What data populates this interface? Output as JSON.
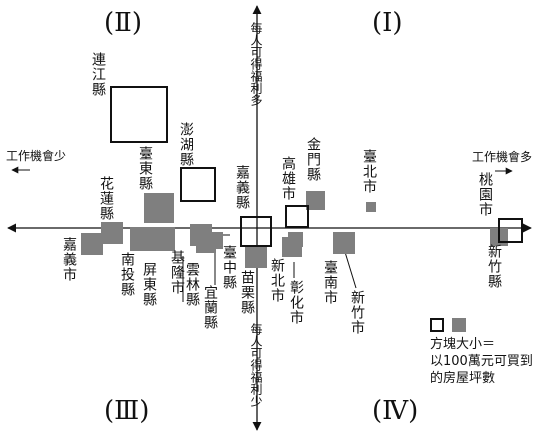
{
  "quadrants": {
    "q1": "(Ⅰ)",
    "q2": "(Ⅱ)",
    "q3": "(Ⅲ)",
    "q4": "(Ⅳ)"
  },
  "axis": {
    "top": "每人可得福利多",
    "bottom": "每人可得福利少",
    "left": "工作機會少",
    "right": "工作機會多"
  },
  "legend": {
    "line1": "方塊大小＝",
    "line2": "以100萬元可買到",
    "line3": "的房屋坪數"
  },
  "labels": {
    "lianjiang": "連江縣",
    "penghu": "澎湖縣",
    "taitung": "臺東縣",
    "hualien": "花蓮縣",
    "chiayi_county": "嘉義縣",
    "chiayi_city": "嘉義市",
    "nantou": "南投縣",
    "pingtung": "屏東縣",
    "keelung": "基隆市",
    "yunlin": "雲林縣",
    "yilan": "宜蘭縣",
    "taichung": "臺中縣",
    "miaoli": "苗栗縣",
    "kinmen": "金門縣",
    "kaohsiung": "高雄市",
    "taipei_city": "臺北市",
    "new_taipei": "新北市",
    "changhua": "彰化市",
    "tainan": "臺南市",
    "hsinchu_city": "新竹市",
    "taoyuan": "桃園市",
    "hsinchu_county": "新竹縣"
  },
  "colors": {
    "filled": "#7f7f7f",
    "stroke": "#111111"
  }
}
